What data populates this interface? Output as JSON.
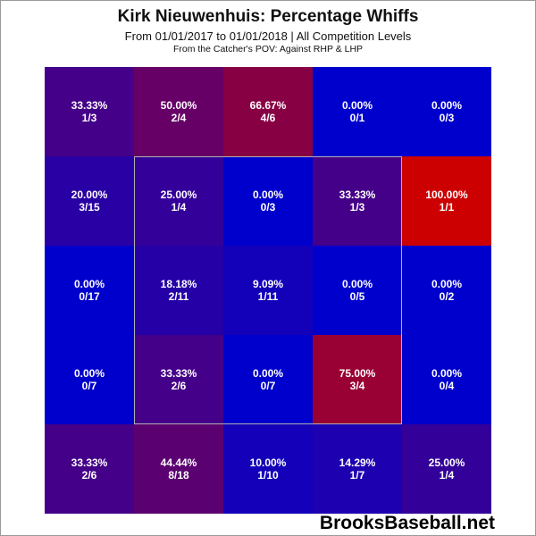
{
  "chart_data": {
    "type": "heatmap",
    "title": "Kirk Nieuwenhuis: Percentage Whiffs",
    "subtitle": "From 01/01/2017 to 01/01/2018 | All Competition Levels",
    "note": "From the Catcher's POV:  Against RHP & LHP",
    "rows": [
      [
        {
          "pct": "33.33%",
          "frac": "1/3",
          "value": 33.33
        },
        {
          "pct": "50.00%",
          "frac": "2/4",
          "value": 50.0
        },
        {
          "pct": "66.67%",
          "frac": "4/6",
          "value": 66.67
        },
        {
          "pct": "0.00%",
          "frac": "0/1",
          "value": 0
        },
        {
          "pct": "0.00%",
          "frac": "0/3",
          "value": 0
        }
      ],
      [
        {
          "pct": "20.00%",
          "frac": "3/15",
          "value": 20.0
        },
        {
          "pct": "25.00%",
          "frac": "1/4",
          "value": 25.0
        },
        {
          "pct": "0.00%",
          "frac": "0/3",
          "value": 0
        },
        {
          "pct": "33.33%",
          "frac": "1/3",
          "value": 33.33
        },
        {
          "pct": "100.00%",
          "frac": "1/1",
          "value": 100.0
        }
      ],
      [
        {
          "pct": "0.00%",
          "frac": "0/17",
          "value": 0
        },
        {
          "pct": "18.18%",
          "frac": "2/11",
          "value": 18.18
        },
        {
          "pct": "9.09%",
          "frac": "1/11",
          "value": 9.09
        },
        {
          "pct": "0.00%",
          "frac": "0/5",
          "value": 0
        },
        {
          "pct": "0.00%",
          "frac": "0/2",
          "value": 0
        }
      ],
      [
        {
          "pct": "0.00%",
          "frac": "0/7",
          "value": 0
        },
        {
          "pct": "33.33%",
          "frac": "2/6",
          "value": 33.33
        },
        {
          "pct": "0.00%",
          "frac": "0/7",
          "value": 0
        },
        {
          "pct": "75.00%",
          "frac": "3/4",
          "value": 75.0
        },
        {
          "pct": "0.00%",
          "frac": "0/4",
          "value": 0
        }
      ],
      [
        {
          "pct": "33.33%",
          "frac": "2/6",
          "value": 33.33
        },
        {
          "pct": "44.44%",
          "frac": "8/18",
          "value": 44.44
        },
        {
          "pct": "10.00%",
          "frac": "1/10",
          "value": 10.0
        },
        {
          "pct": "14.29%",
          "frac": "1/7",
          "value": 14.29
        },
        {
          "pct": "25.00%",
          "frac": "1/4",
          "value": 25.0
        }
      ]
    ],
    "color_low": "#0000cc",
    "color_high": "#cc0000",
    "strike_zone": "inner 3x3 cells"
  },
  "watermark": "BrooksBaseball.net"
}
